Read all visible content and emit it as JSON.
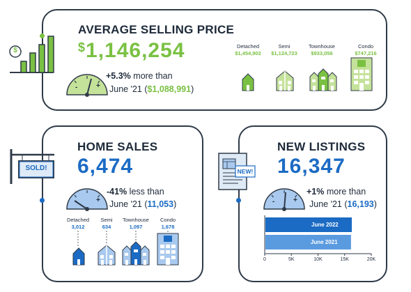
{
  "colors": {
    "green": "#7ac143",
    "green_light": "#c5e29a",
    "blue": "#1b6bc4",
    "blue_light": "#a9c9ee",
    "border": "#2f3a48"
  },
  "avg_price": {
    "title": "AVERAGE SELLING PRICE",
    "dollar_sign": "$",
    "value": "1,146,254",
    "change": "+5.3%",
    "change_text": "more than",
    "prev_prefix": "June '21 (",
    "prev_value": "$1,088,991",
    "prev_suffix": ")",
    "gauge": {
      "minus": "-",
      "plus": "+"
    },
    "icon_sign": "$",
    "types": [
      {
        "label": "Detached",
        "value": "$1,454,902"
      },
      {
        "label": "Semi",
        "value": "$1,124,723"
      },
      {
        "label": "Townhouse",
        "value": "$933,056"
      },
      {
        "label": "Condo",
        "value": "$747,216"
      }
    ]
  },
  "home_sales": {
    "title": "HOME SALES",
    "value": "6,474",
    "change": "-41%",
    "change_text": "less than",
    "prev_prefix": "June '21 (",
    "prev_value": "11,053",
    "prev_suffix": ")",
    "sign_text": "SOLD!",
    "gauge": {
      "minus": "-",
      "plus": "+"
    },
    "types": [
      {
        "label": "Detached",
        "value": "3,012"
      },
      {
        "label": "Semi",
        "value": "634"
      },
      {
        "label": "Townhouse",
        "value": "1,097"
      },
      {
        "label": "Condo",
        "value": "1,678"
      }
    ]
  },
  "new_listings": {
    "title": "NEW LISTINGS",
    "value": "16,347",
    "change": "+1%",
    "change_text": "more than",
    "prev_prefix": "June '21 (",
    "prev_value": "16,193",
    "prev_suffix": ")",
    "paper_text": "NEW!",
    "gauge": {
      "minus": "-",
      "plus": "+"
    },
    "chart_data": {
      "type": "bar",
      "orientation": "horizontal",
      "categories": [
        "June 2022",
        "June 2021"
      ],
      "values": [
        16347,
        16193
      ],
      "xlim": [
        0,
        20000
      ],
      "xticks": [
        "0",
        "5K",
        "10K",
        "15K",
        "20K"
      ],
      "colors": [
        "#1b6bc4",
        "#5a9be0"
      ]
    }
  }
}
